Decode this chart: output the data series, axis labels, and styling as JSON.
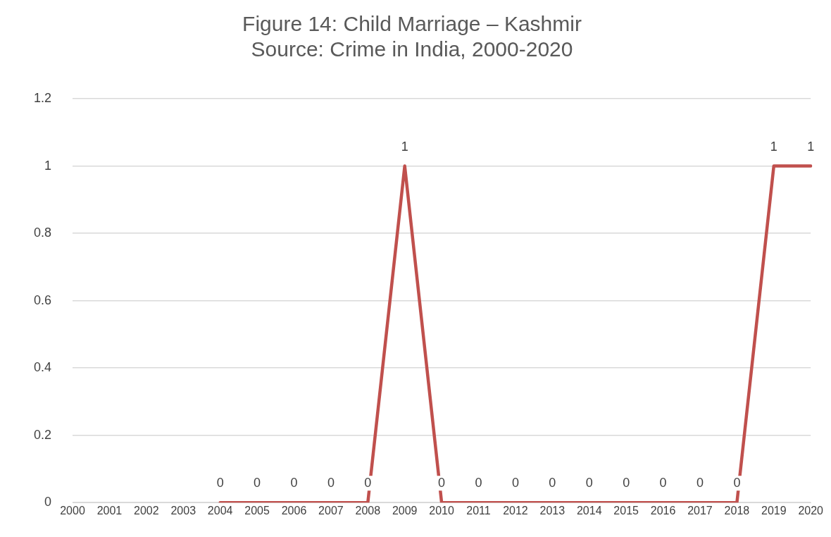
{
  "chart_data": {
    "type": "line",
    "title": "Figure 14: Child Marriage – Kashmir",
    "subtitle": "Source: Crime in India, 2000-2020",
    "categories": [
      "2000",
      "2001",
      "2002",
      "2003",
      "2004",
      "2005",
      "2006",
      "2007",
      "2008",
      "2009",
      "2010",
      "2011",
      "2012",
      "2013",
      "2014",
      "2015",
      "2016",
      "2017",
      "2018",
      "2019",
      "2020"
    ],
    "series": [
      {
        "color": "#c0504d",
        "values": [
          null,
          null,
          null,
          null,
          0,
          0,
          0,
          0,
          0,
          1,
          0,
          0,
          0,
          0,
          0,
          0,
          0,
          0,
          0,
          1,
          1
        ]
      }
    ],
    "ylim": [
      0,
      1.2
    ],
    "yticks": [
      0,
      0.2,
      0.4,
      0.6,
      0.8,
      1,
      1.2
    ],
    "grid": "y",
    "legend": false,
    "marker": "none",
    "line_style": "solid",
    "data_labels": true
  }
}
